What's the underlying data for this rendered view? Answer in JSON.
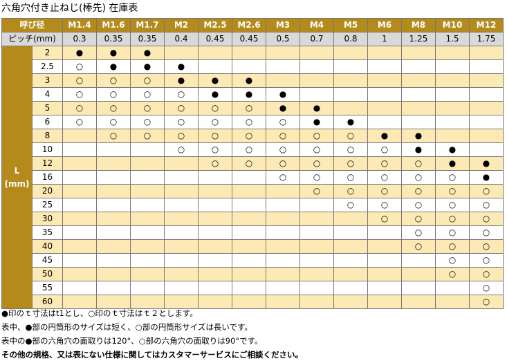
{
  "title": "六角穴付き止ねじ(棒先) 在庫表",
  "header": {
    "nominal_label": "呼び径",
    "pitch_label": "ピッチ(mm)",
    "columns": [
      "M1.4",
      "M1.6",
      "M1.7",
      "M2",
      "M2.5",
      "M2.6",
      "M3",
      "M4",
      "M5",
      "M6",
      "M8",
      "M10",
      "M12"
    ],
    "pitches": [
      "0.3",
      "0.35",
      "0.35",
      "0.4",
      "0.45",
      "0.45",
      "0.5",
      "0.7",
      "0.8",
      "1",
      "1.25",
      "1.5",
      "1.75"
    ]
  },
  "length_label": "L\n(mm)",
  "marks": {
    "filled": "●",
    "open": "○"
  },
  "rows": [
    {
      "len": "2",
      "cells": [
        "●",
        "●",
        "●",
        "",
        "",
        "",
        "",
        "",
        "",
        "",
        "",
        "",
        ""
      ]
    },
    {
      "len": "2.5",
      "cells": [
        "○",
        "●",
        "●",
        "●",
        "",
        "",
        "",
        "",
        "",
        "",
        "",
        "",
        ""
      ]
    },
    {
      "len": "3",
      "cells": [
        "○",
        "○",
        "○",
        "●",
        "●",
        "●",
        "",
        "",
        "",
        "",
        "",
        "",
        ""
      ]
    },
    {
      "len": "4",
      "cells": [
        "○",
        "○",
        "○",
        "○",
        "●",
        "●",
        "●",
        "",
        "",
        "",
        "",
        "",
        ""
      ]
    },
    {
      "len": "5",
      "cells": [
        "○",
        "○",
        "○",
        "○",
        "○",
        "○",
        "●",
        "●",
        "",
        "",
        "",
        "",
        ""
      ]
    },
    {
      "len": "6",
      "cells": [
        "○",
        "○",
        "○",
        "○",
        "○",
        "○",
        "○",
        "●",
        "●",
        "",
        "",
        "",
        ""
      ]
    },
    {
      "len": "8",
      "cells": [
        "",
        "○",
        "○",
        "○",
        "○",
        "○",
        "○",
        "○",
        "○",
        "●",
        "●",
        "",
        ""
      ]
    },
    {
      "len": "10",
      "cells": [
        "",
        "",
        "",
        "○",
        "○",
        "○",
        "○",
        "○",
        "○",
        "○",
        "●",
        "●",
        ""
      ]
    },
    {
      "len": "12",
      "cells": [
        "",
        "",
        "",
        "",
        "○",
        "○",
        "○",
        "○",
        "○",
        "○",
        "○",
        "●",
        "●"
      ]
    },
    {
      "len": "16",
      "cells": [
        "",
        "",
        "",
        "",
        "",
        "",
        "○",
        "○",
        "○",
        "○",
        "○",
        "○",
        "●"
      ]
    },
    {
      "len": "20",
      "cells": [
        "",
        "",
        "",
        "",
        "",
        "",
        "",
        "○",
        "○",
        "○",
        "○",
        "○",
        "○"
      ]
    },
    {
      "len": "25",
      "cells": [
        "",
        "",
        "",
        "",
        "",
        "",
        "",
        "",
        "○",
        "○",
        "○",
        "○",
        "○"
      ]
    },
    {
      "len": "30",
      "cells": [
        "",
        "",
        "",
        "",
        "",
        "",
        "",
        "",
        "",
        "○",
        "○",
        "○",
        "○"
      ]
    },
    {
      "len": "35",
      "cells": [
        "",
        "",
        "",
        "",
        "",
        "",
        "",
        "",
        "",
        "",
        "○",
        "○",
        "○"
      ]
    },
    {
      "len": "40",
      "cells": [
        "",
        "",
        "",
        "",
        "",
        "",
        "",
        "",
        "",
        "",
        "○",
        "○",
        "○"
      ]
    },
    {
      "len": "45",
      "cells": [
        "",
        "",
        "",
        "",
        "",
        "",
        "",
        "",
        "",
        "",
        "",
        "○",
        "○"
      ]
    },
    {
      "len": "50",
      "cells": [
        "",
        "",
        "",
        "",
        "",
        "",
        "",
        "",
        "",
        "",
        "",
        "○",
        "○"
      ]
    },
    {
      "len": "55",
      "cells": [
        "",
        "",
        "",
        "",
        "",
        "",
        "",
        "",
        "",
        "",
        "",
        "",
        "○"
      ]
    },
    {
      "len": "60",
      "cells": [
        "",
        "",
        "",
        "",
        "",
        "",
        "",
        "",
        "",
        "",
        "",
        "",
        "○"
      ]
    }
  ],
  "notes": [
    "●印のｔ寸法はt1とし、○印のｔ寸法はｔ２とします。",
    "表中、●部の円筒形のサイズは短く、○部の円筒形サイズは長いです。",
    "表中の●部の六角穴の面取りは120°、○部の六角穴の面取りは90°です。"
  ],
  "contact_note": "その他の規格、又は表にない仕様に関してはカスタマーサービスにご相談ください。"
}
